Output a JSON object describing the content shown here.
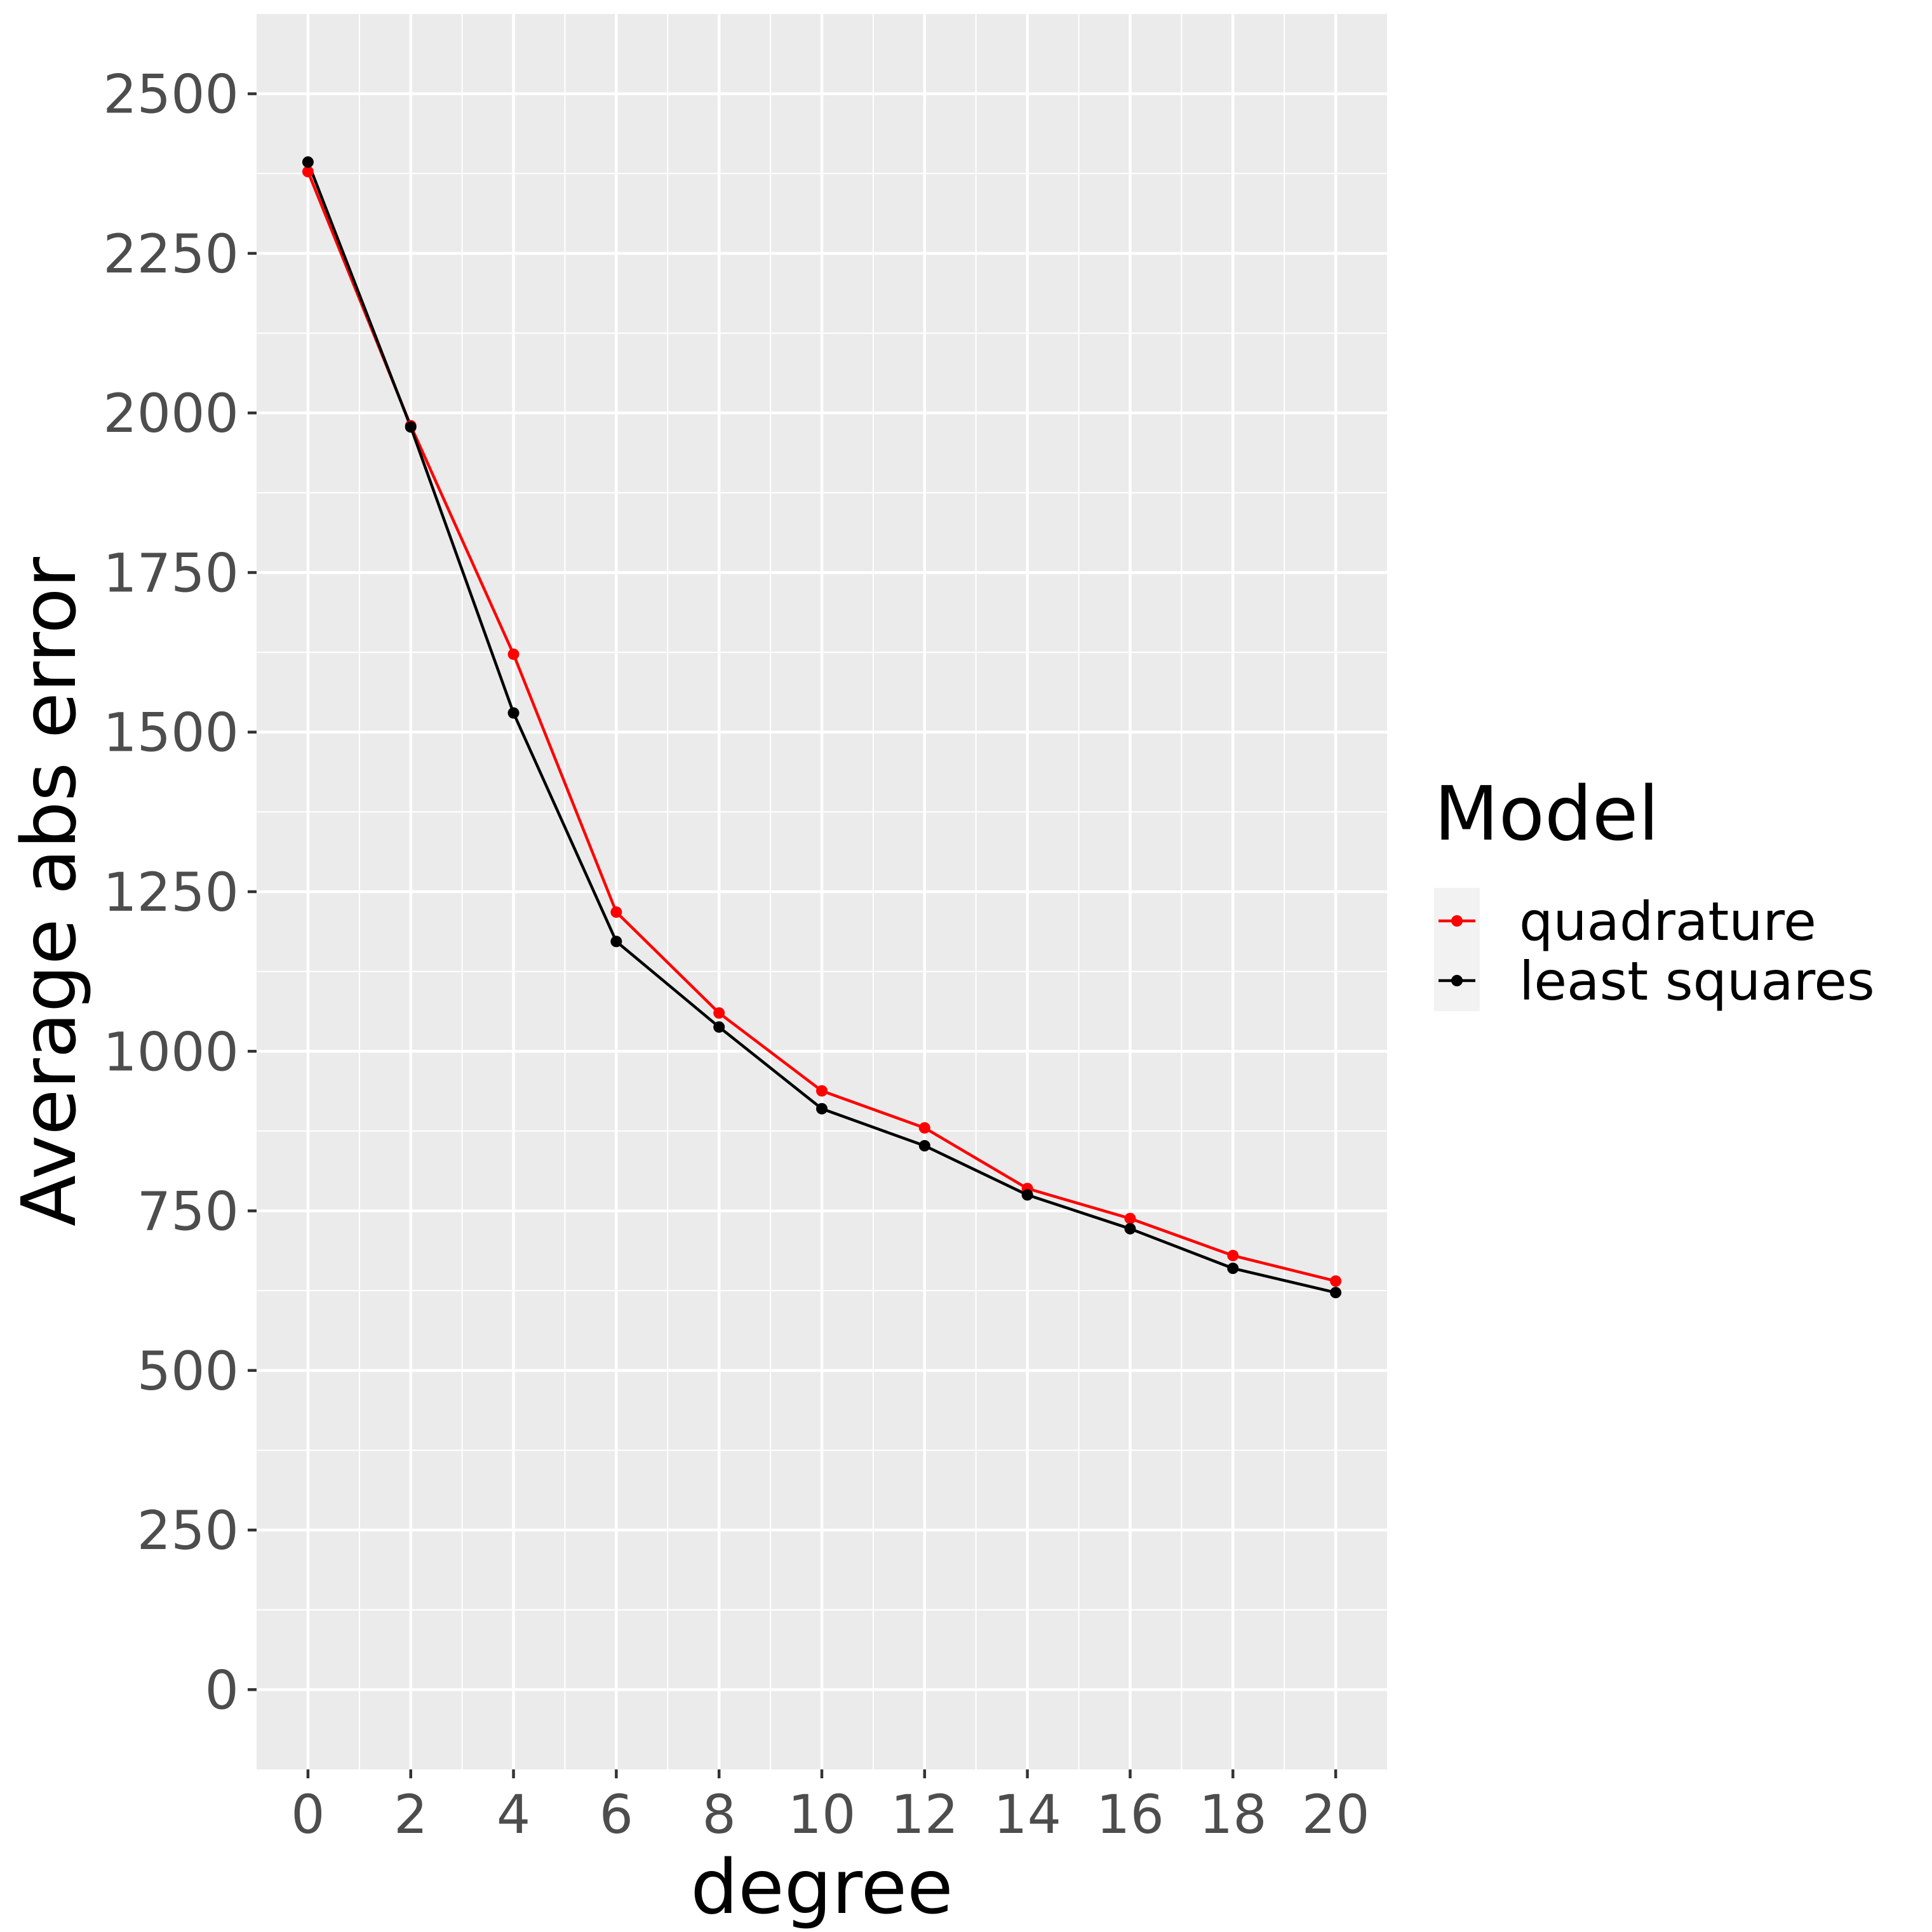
{
  "chart_data": {
    "type": "line",
    "title": "",
    "xlabel": "degree",
    "ylabel": "Average abs error",
    "x": [
      0,
      2,
      4,
      6,
      8,
      10,
      12,
      14,
      16,
      18,
      20
    ],
    "xticks": [
      "0",
      "2",
      "4",
      "6",
      "8",
      "10",
      "12",
      "14",
      "16",
      "18",
      "20"
    ],
    "yticks": [
      "0",
      "250",
      "500",
      "750",
      "1000",
      "1250",
      "1500",
      "1750",
      "2000",
      "2250",
      "2500"
    ],
    "xlim": [
      -1,
      21
    ],
    "ylim": [
      -125,
      2625
    ],
    "grid": true,
    "legend": {
      "title": "Model",
      "placement": "right"
    },
    "series": [
      {
        "name": "quadrature",
        "color": "#ff0000",
        "values": [
          2378,
          1980,
          1622,
          1218,
          1060,
          938,
          880,
          785,
          738,
          680,
          640
        ]
      },
      {
        "name": "least squares",
        "color": "#000000",
        "values": [
          2393,
          1978,
          1530,
          1172,
          1038,
          910,
          852,
          775,
          722,
          660,
          622
        ]
      }
    ],
    "panel_background": "#ebebeb",
    "grid_color": "#ffffff"
  }
}
